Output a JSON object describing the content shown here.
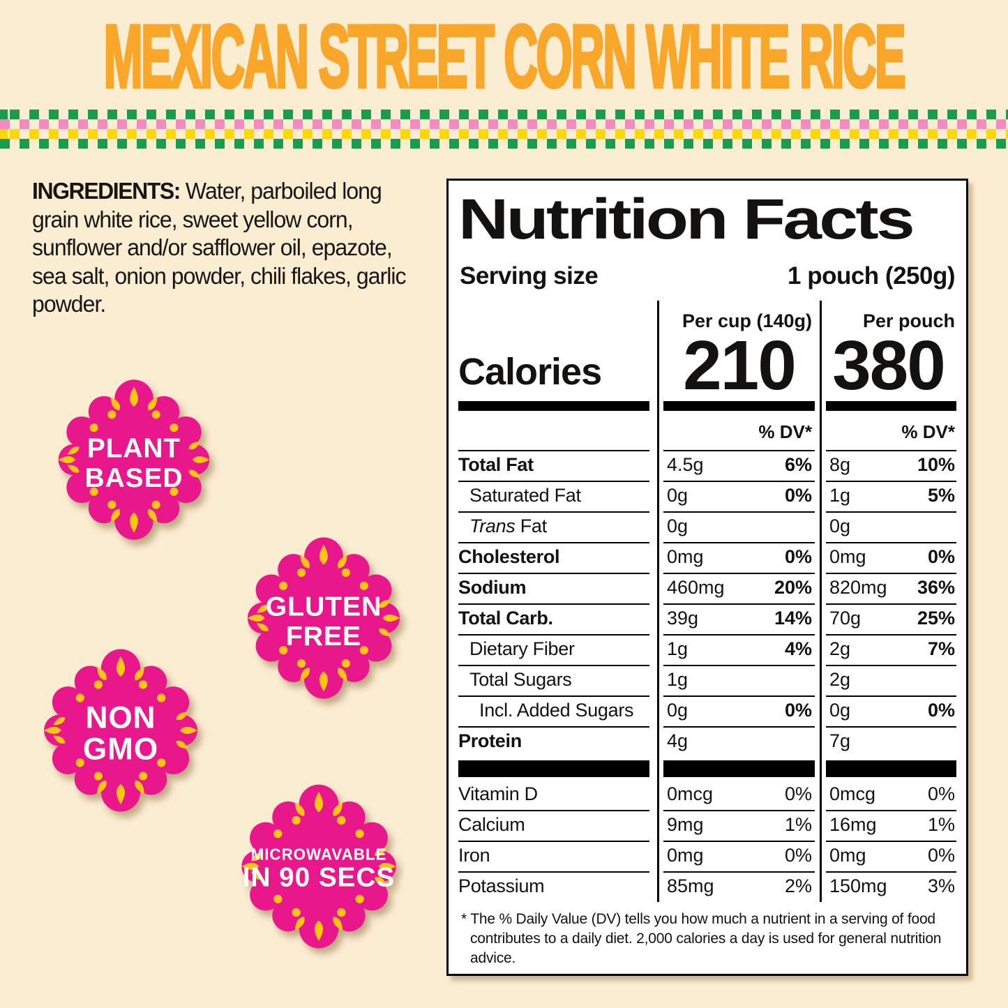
{
  "page": {
    "background": "#FBEDD2"
  },
  "header": {
    "title": "MEXICAN STREET CORN WHITE RICE",
    "color": "#F8A72A"
  },
  "pattern": {
    "green": "#1B9B4C",
    "pink": "#F28BC0",
    "yellow": "#FFD60A"
  },
  "ingredients": {
    "label": "INGREDIENTS:",
    "text": " Water, parboiled long grain white rice, sweet yellow corn, sunflower and/or safflower oil, epazote, sea salt, onion powder, chili flakes, garlic powder."
  },
  "badges": {
    "pink": "#E8188C",
    "yellow": "#FFC414",
    "text_color": "#FFFFFF",
    "items": [
      {
        "id": "plant-based",
        "lines": [
          "PLANT",
          "BASED"
        ]
      },
      {
        "id": "gluten-free",
        "lines": [
          "GLUTEN",
          "FREE"
        ]
      },
      {
        "id": "non-gmo",
        "lines": [
          "NON",
          "GMO"
        ]
      },
      {
        "id": "microwavable",
        "lines": [
          "MICROWAVABLE",
          "IN 90 SECS"
        ]
      }
    ]
  },
  "nutrition": {
    "title": "Nutrition Facts",
    "serving_label": "Serving size",
    "serving_value": "1 pouch (250g)",
    "col2_header": "Per cup (140g)",
    "col3_header": "Per pouch",
    "calories_label": "Calories",
    "calories_per_cup": "210",
    "calories_per_pouch": "380",
    "dv_header": "% DV*",
    "rows": [
      {
        "name": "Total Fat",
        "bold": true,
        "indent": 0,
        "a1": "4.5g",
        "dv1": "6%",
        "a2": "8g",
        "dv2": "10%"
      },
      {
        "name": "Saturated Fat",
        "bold": false,
        "indent": 1,
        "a1": "0g",
        "dv1": "0%",
        "a2": "1g",
        "dv2": "5%"
      },
      {
        "name": " Fat",
        "italic_prefix": "Trans",
        "bold": false,
        "indent": 1,
        "a1": "0g",
        "dv1": "",
        "a2": "0g",
        "dv2": ""
      },
      {
        "name": "Cholesterol",
        "bold": true,
        "indent": 0,
        "a1": "0mg",
        "dv1": "0%",
        "a2": "0mg",
        "dv2": "0%"
      },
      {
        "name": "Sodium",
        "bold": true,
        "indent": 0,
        "a1": "460mg",
        "dv1": "20%",
        "a2": "820mg",
        "dv2": "36%"
      },
      {
        "name": "Total Carb.",
        "bold": true,
        "indent": 0,
        "a1": "39g",
        "dv1": "14%",
        "a2": "70g",
        "dv2": "25%"
      },
      {
        "name": "Dietary Fiber",
        "bold": false,
        "indent": 1,
        "a1": "1g",
        "dv1": "4%",
        "a2": "2g",
        "dv2": "7%"
      },
      {
        "name": "Total Sugars",
        "bold": false,
        "indent": 1,
        "a1": "1g",
        "dv1": "",
        "a2": "2g",
        "dv2": ""
      },
      {
        "name": "Incl. Added Sugars",
        "bold": false,
        "indent": 2,
        "a1": "0g",
        "dv1": "0%",
        "a2": "0g",
        "dv2": "0%"
      },
      {
        "name": "Protein",
        "bold": true,
        "indent": 0,
        "a1": "4g",
        "dv1": "",
        "a2": "7g",
        "dv2": ""
      }
    ],
    "vitamins": [
      {
        "name": "Vitamin D",
        "a1": "0mcg",
        "dv1": "0%",
        "a2": "0mcg",
        "dv2": "0%"
      },
      {
        "name": "Calcium",
        "a1": "9mg",
        "dv1": "1%",
        "a2": "16mg",
        "dv2": "1%"
      },
      {
        "name": "Iron",
        "a1": "0mg",
        "dv1": "0%",
        "a2": "0mg",
        "dv2": "0%"
      },
      {
        "name": "Potassium",
        "a1": "85mg",
        "dv1": "2%",
        "a2": "150mg",
        "dv2": "3%"
      }
    ],
    "footnote": "* The % Daily Value (DV) tells you how much a nutrient in a serving of food contributes to a daily diet. 2,000 calories a day is used for general nutrition advice."
  }
}
